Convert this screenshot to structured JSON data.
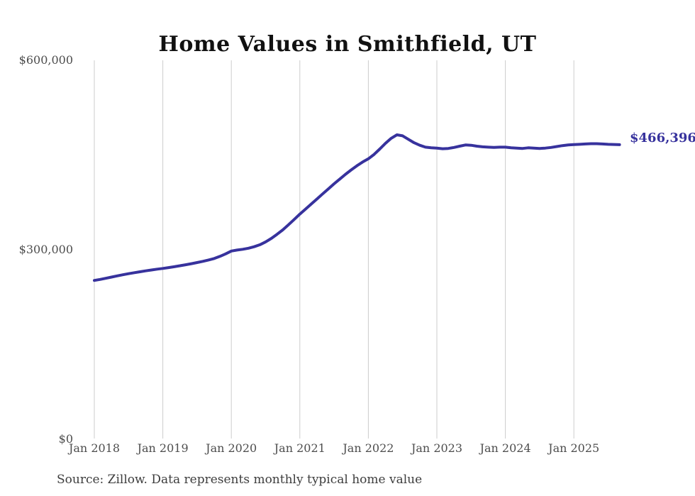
{
  "chart_data": {
    "type": "line",
    "title": "Home Values in Smithfield, UT",
    "source_note": "Source: Zillow. Data represents monthly typical home value",
    "end_label": "$466,396",
    "final_value": 466396,
    "line_color": "#37329d",
    "grid_color": "#cccccc",
    "axis_label_color": "#4d4d4d",
    "x_frequency": "monthly",
    "x_start": "2018-01",
    "x_end": "2025-09",
    "x_tick_labels": [
      "Jan 2018",
      "Jan 2019",
      "Jan 2020",
      "Jan 2021",
      "Jan 2022",
      "Jan 2023",
      "Jan 2024",
      "Jan 2025"
    ],
    "y_ticks": [
      0,
      300000,
      600000
    ],
    "y_tick_labels": [
      "$0",
      "$300,000",
      "$600,000"
    ],
    "ylim": [
      0,
      600000
    ],
    "grid": "vertical-only",
    "legend": "none",
    "series": [
      {
        "name": "Typical home value",
        "values": [
          251500,
          253000,
          254800,
          256700,
          258600,
          260400,
          262100,
          263700,
          265200,
          266600,
          268000,
          269300,
          270500,
          271800,
          273200,
          274700,
          276300,
          278000,
          279800,
          281700,
          283800,
          286200,
          289500,
          293500,
          298000,
          299500,
          300800,
          302500,
          304800,
          308000,
          312500,
          318000,
          324500,
          331500,
          339500,
          348000,
          356500,
          364500,
          372500,
          380500,
          388500,
          396500,
          404500,
          412000,
          419500,
          426500,
          433000,
          439000,
          444000,
          451000,
          459500,
          468500,
          476500,
          482000,
          480500,
          475000,
          469500,
          465500,
          462500,
          461500,
          461000,
          460000,
          460500,
          462000,
          464000,
          466000,
          465500,
          464000,
          463000,
          462500,
          462000,
          462500,
          462500,
          461500,
          461000,
          460500,
          461500,
          461000,
          460500,
          461000,
          462000,
          463500,
          465000,
          466000,
          466500,
          467000,
          467500,
          468000,
          468000,
          467500,
          467000,
          466700,
          466396
        ]
      }
    ]
  }
}
